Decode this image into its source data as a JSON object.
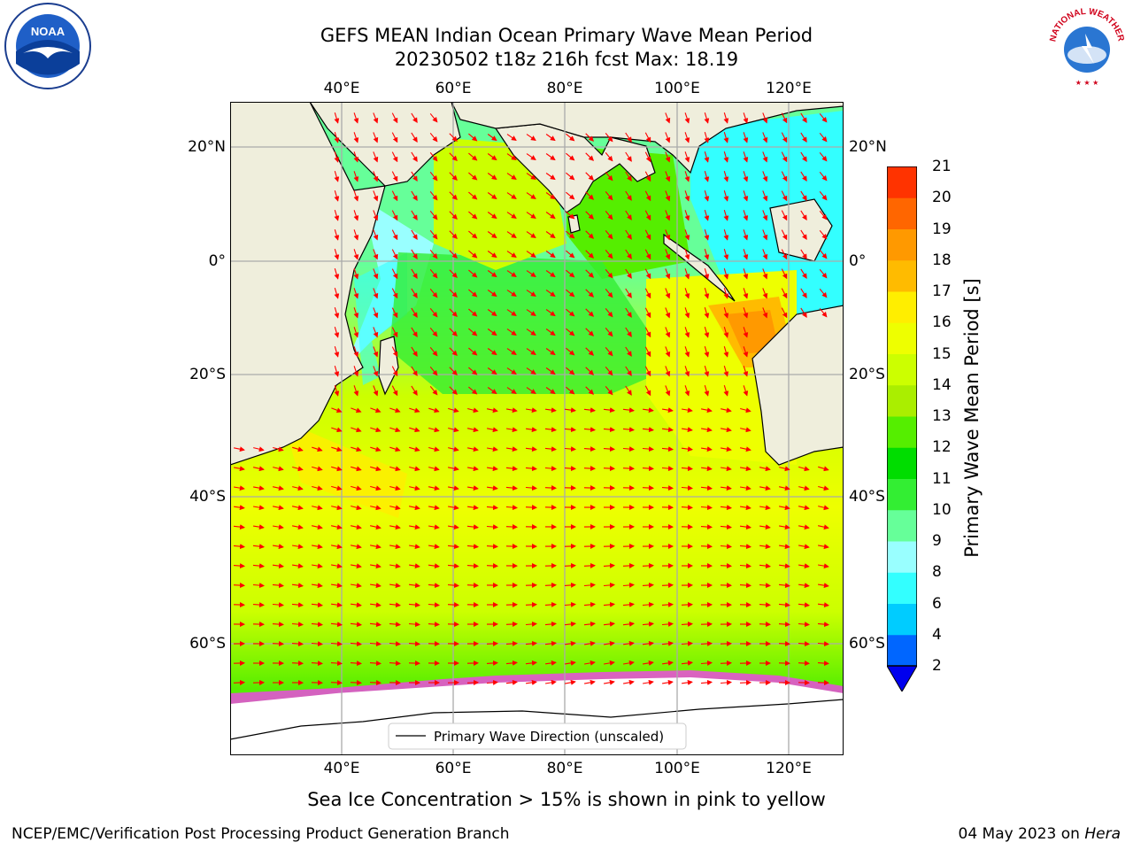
{
  "header": {
    "title_line1": "GEFS MEAN Indian Ocean Primary Wave Mean Period",
    "title_line2": "20230502 t18z 216h fcst   Max: 18.19"
  },
  "map": {
    "lon_ticks": [
      "40°E",
      "60°E",
      "80°E",
      "100°E",
      "120°E"
    ],
    "lat_ticks": [
      "20°N",
      "0°",
      "20°S",
      "40°S",
      "60°S"
    ],
    "legend_label": "Primary Wave Direction (unscaled)",
    "extent": {
      "lon": [
        20,
        130
      ],
      "lat": [
        -75,
        28
      ]
    },
    "land_color": "#efeedc",
    "ice_color": "#ff33ff",
    "arrow_color": "#ff0000"
  },
  "colorbar": {
    "label": "Primary Wave Mean Period [s]",
    "ticks": [
      "2",
      "4",
      "6",
      "8",
      "9",
      "10",
      "11",
      "12",
      "13",
      "14",
      "15",
      "16",
      "17",
      "18",
      "19",
      "20",
      "21"
    ],
    "colors": [
      "#0066ff",
      "#00ccff",
      "#33ffff",
      "#99ffff",
      "#66ff99",
      "#33ee33",
      "#00dd00",
      "#55ee00",
      "#aaee00",
      "#ccff00",
      "#eeff00",
      "#ffee00",
      "#ffbb00",
      "#ff9900",
      "#ff6600",
      "#ff3300"
    ],
    "extend_color": "#0000ee"
  },
  "caption": "Sea Ice Concentration > 15% is shown in pink to yellow",
  "footer": {
    "left": "NCEP/EMC/Verification Post Processing Product Generation Branch",
    "right_date": "04 May 2023 on ",
    "right_host": "Hera"
  },
  "logos": {
    "noaa": "NOAA",
    "nws": "NATIONAL WEATHER SERVICE"
  }
}
